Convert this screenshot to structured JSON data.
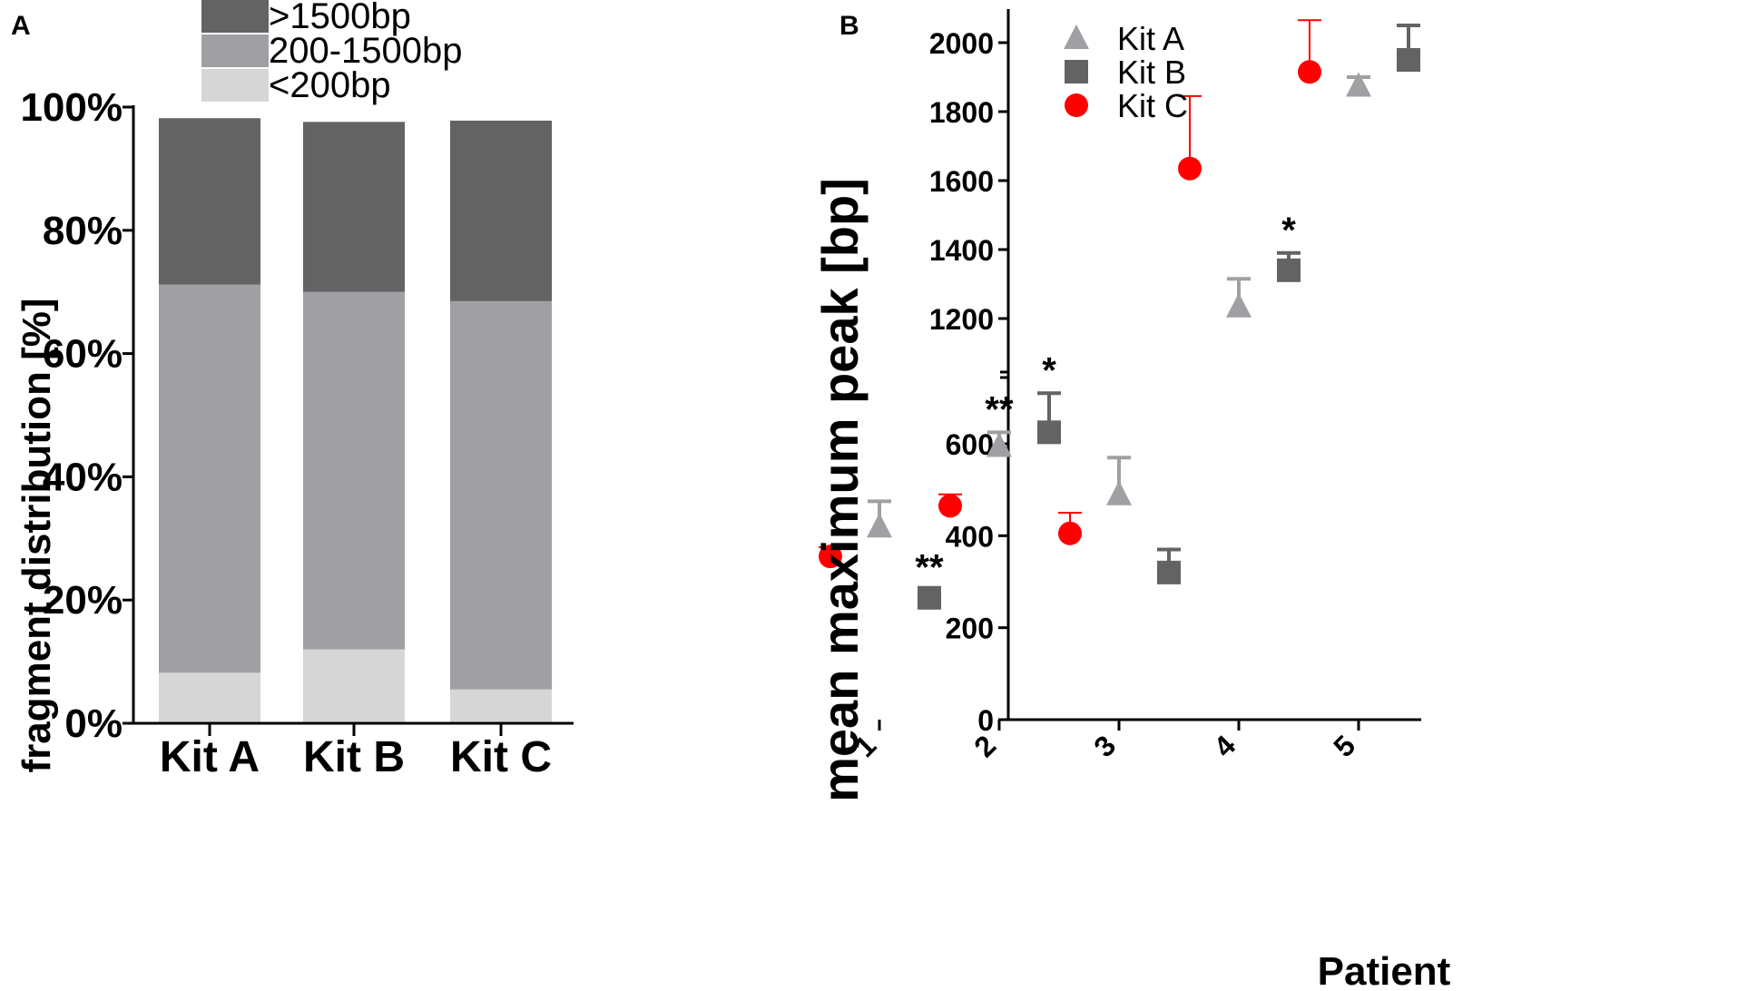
{
  "chart_data": [
    {
      "panel": "A",
      "type": "bar",
      "stacked": true,
      "title": "",
      "xlabel": "",
      "ylabel": "fragment distribution [%]",
      "ylim": [
        0,
        100
      ],
      "yticks": [
        "0%",
        "20%",
        "40%",
        "60%",
        "80%",
        "100%"
      ],
      "categories": [
        "Kit A",
        "Kit B",
        "Kit C"
      ],
      "series": [
        {
          "name": "<200bp",
          "color": "#d6d6d6",
          "values": [
            8.2,
            12.0,
            5.5
          ]
        },
        {
          "name": "200-1500bp",
          "color": "#a0a0a4",
          "values": [
            63.0,
            58.0,
            63.0
          ]
        },
        {
          "name": ">1500bp",
          "color": "#636363",
          "values": [
            27.0,
            27.6,
            29.3
          ]
        }
      ],
      "legend": [
        ">1500bp",
        "200-1500bp",
        "<200bp"
      ],
      "legend_position": "top"
    },
    {
      "panel": "B",
      "type": "scatter",
      "title": "",
      "xlabel": "Patient",
      "ylabel": "mean maximum peak [bp]",
      "xticks": [
        "1",
        "2",
        "3",
        "4",
        "5"
      ],
      "ylim": [
        0,
        2100
      ],
      "axis_break": [
        750,
        1100
      ],
      "yticks": [
        "0",
        "200",
        "400",
        "600",
        "1200",
        "1400",
        "1600",
        "1800",
        "2000"
      ],
      "legend": [
        "Kit A",
        "Kit B",
        "Kit C"
      ],
      "legend_position": "top-left",
      "series": [
        {
          "name": "Kit A",
          "marker": "triangle",
          "color": "#a0a0a4",
          "err_color": "#a0a0a4",
          "patients": [
            1,
            2,
            3,
            4,
            5
          ],
          "values": [
            420,
            595,
            490,
            1235,
            1875
          ],
          "errors": [
            55,
            30,
            80,
            80,
            25
          ],
          "annotations": [
            "",
            "**",
            "",
            "",
            ""
          ]
        },
        {
          "name": "Kit B",
          "marker": "square",
          "color": "#636363",
          "err_color": "#636363",
          "patients": [
            1,
            2,
            3,
            4,
            5
          ],
          "values": [
            265,
            625,
            320,
            1340,
            1950
          ],
          "errors": [
            0,
            85,
            50,
            50,
            100
          ],
          "annotations": [
            "**",
            "*",
            "",
            "*",
            ""
          ]
        },
        {
          "name": "Kit C",
          "marker": "circle",
          "color": "#ff0000",
          "err_color": "#ff0000",
          "patients": [
            1,
            2,
            3,
            4,
            5
          ],
          "values": [
            355,
            465,
            405,
            1635,
            1915
          ],
          "errors": [
            20,
            25,
            45,
            210,
            150
          ],
          "annotations": [
            "",
            "",
            "",
            "",
            ""
          ]
        }
      ]
    }
  ],
  "panels": {
    "a_label": "A",
    "b_label": "B"
  }
}
